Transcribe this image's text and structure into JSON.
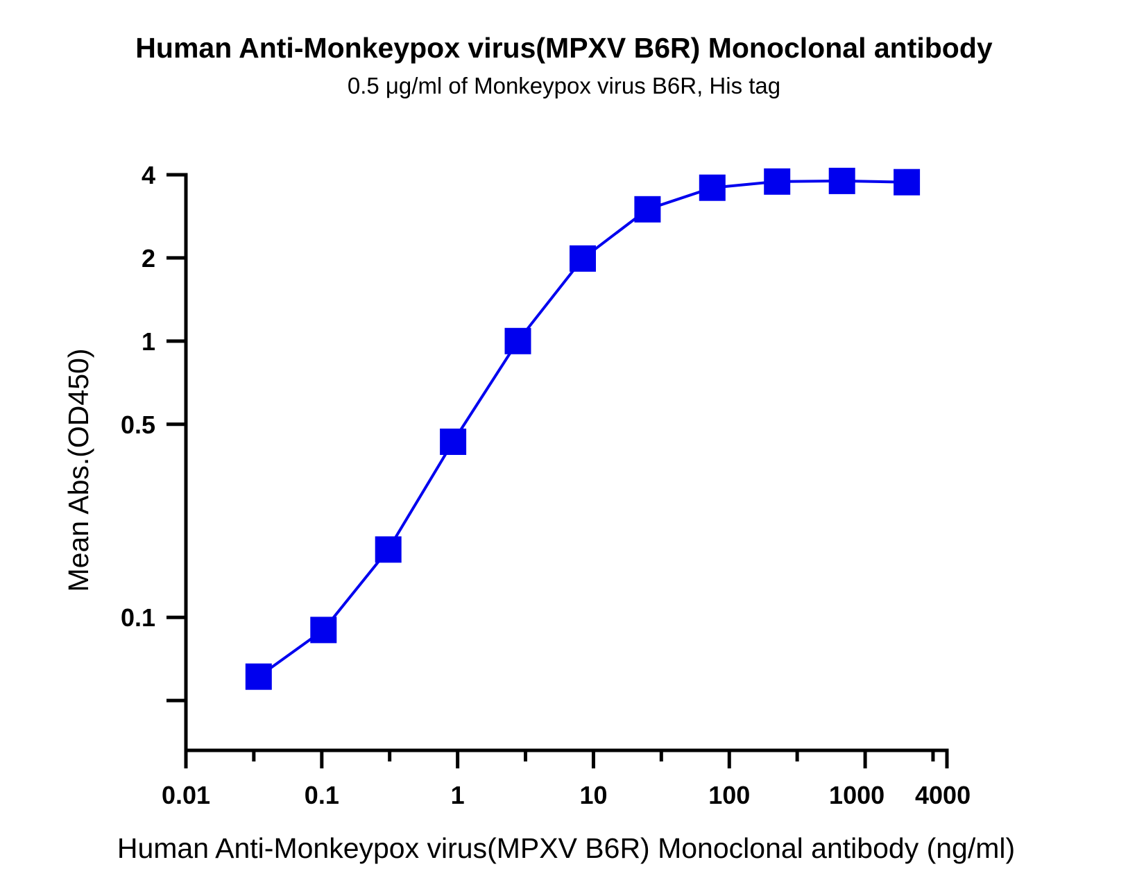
{
  "chart_data": {
    "type": "line",
    "title": "Human Anti-Monkeypox virus(MPXV B6R) Monoclonal antibody",
    "subtitle": "0.5 μg/ml of Monkeypox virus B6R, His tag",
    "xlabel": "Human Anti-Monkeypox virus(MPXV B6R) Monoclonal antibody (ng/ml)",
    "ylabel": "Mean Abs.(OD450)",
    "xscale": "log",
    "yscale": "log",
    "xlim": [
      0.01,
      4000
    ],
    "ylim": [
      0.033,
      4
    ],
    "x_ticks": [
      {
        "value": 0.01,
        "label": "0.01"
      },
      {
        "value": 0.1,
        "label": "0.1"
      },
      {
        "value": 1,
        "label": "1"
      },
      {
        "value": 10,
        "label": "10"
      },
      {
        "value": 100,
        "label": "100"
      },
      {
        "value": 1000,
        "label": "1000"
      },
      {
        "value": 4000,
        "label": "4000"
      }
    ],
    "x_minor_ticks": [
      0.0316,
      0.316,
      3.16,
      31.6,
      316,
      3160
    ],
    "y_ticks": [
      {
        "value": 4,
        "label": "4"
      },
      {
        "value": 2,
        "label": "2"
      },
      {
        "value": 1,
        "label": "1"
      },
      {
        "value": 0.5,
        "label": "0.5"
      },
      {
        "value": 0.1,
        "label": "0.1"
      },
      {
        "value": 0.05,
        "label": ""
      }
    ],
    "series": [
      {
        "name": "Human Anti-Monkeypox virus(MPXV B6R) Monoclonal antibody",
        "color": "#0000ee",
        "marker": "square",
        "x": [
          0.0343,
          0.1029,
          0.3086,
          0.9259,
          2.778,
          8.333,
          25,
          75,
          225,
          675,
          2025
        ],
        "y": [
          0.061,
          0.09,
          0.176,
          0.432,
          1.0,
          1.99,
          3.0,
          3.59,
          3.78,
          3.8,
          3.76
        ]
      }
    ]
  }
}
